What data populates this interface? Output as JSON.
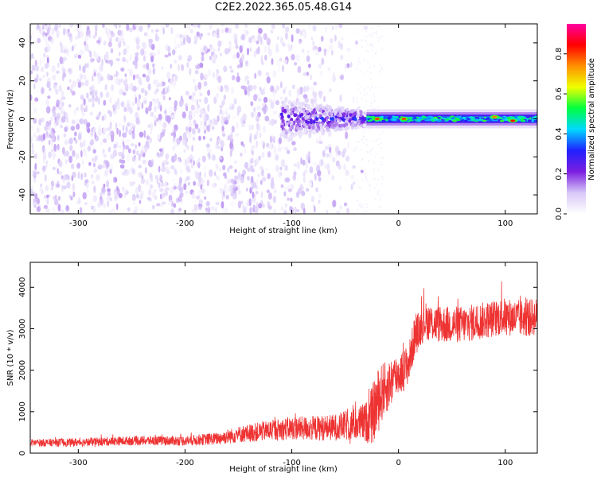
{
  "figure": {
    "title": "C2E2.2022.365.05.48.G14"
  },
  "chart_data": [
    {
      "type": "heatmap",
      "title": "C2E2.2022.365.05.48.G14",
      "xlabel": "Height of straight line (km)",
      "ylabel": "Frequency (Hz)",
      "xlim": [
        -345,
        130
      ],
      "ylim": [
        -50,
        50
      ],
      "xticks": [
        -300,
        -200,
        -100,
        0,
        100
      ],
      "yticks": [
        -40,
        -20,
        0,
        20,
        40
      ],
      "colorbar": {
        "label": "Normalized spectral amplitude",
        "range": [
          0,
          0.95
        ],
        "ticks": [
          0.0,
          0.2,
          0.4,
          0.6,
          0.8
        ],
        "colormap": [
          "#ffffff",
          "#d8c8f8",
          "#7b1fe0",
          "#2020ff",
          "#00d8ff",
          "#00ff40",
          "#f0ff00",
          "#ff9000",
          "#ff0000",
          "#ff00a0"
        ]
      },
      "features": [
        {
          "x_range": [
            -345,
            -30
          ],
          "frequency_range": [
            -50,
            50
          ],
          "description_value": "broadband scatter",
          "typical_amplitude": 0.08
        },
        {
          "x_range": [
            -110,
            -30
          ],
          "frequency_center": 0,
          "typical_amplitude": 0.25
        },
        {
          "x_range": [
            -30,
            130
          ],
          "frequency_center": 0,
          "frequency_width": 4,
          "typical_amplitude": 0.35
        },
        {
          "x": -20,
          "frequency": 0,
          "amplitude": 0.8
        },
        {
          "x": 5,
          "frequency": 0,
          "amplitude": 0.8
        },
        {
          "x": 90,
          "frequency": 1,
          "amplitude": 0.75
        },
        {
          "x": 107,
          "frequency": -1,
          "amplitude": 0.85
        }
      ]
    },
    {
      "type": "line",
      "xlabel": "Height of straight line (km)",
      "ylabel": "SNR (10 * v/v)",
      "xlim": [
        -345,
        130
      ],
      "ylim": [
        0,
        4600
      ],
      "xticks": [
        -300,
        -200,
        -100,
        0,
        100
      ],
      "yticks": [
        0,
        1000,
        2000,
        3000,
        4000
      ],
      "color": "#ee3333",
      "series": [
        {
          "x": [
            -345,
            -300,
            -250,
            -200,
            -170,
            -150,
            -120,
            -100,
            -80,
            -60,
            -40,
            -30,
            -25,
            -20,
            -15,
            -10,
            -5,
            0,
            5,
            10,
            15,
            20,
            25,
            30,
            40,
            60,
            80,
            100,
            110,
            120,
            130
          ],
          "values": [
            250,
            260,
            300,
            300,
            350,
            450,
            550,
            600,
            600,
            620,
            700,
            750,
            900,
            1200,
            1500,
            1600,
            1800,
            1900,
            2000,
            2200,
            2800,
            3000,
            3200,
            3150,
            3100,
            3100,
            3200,
            3300,
            3250,
            3250,
            3300
          ],
          "noise_amplitude": [
            90,
            100,
            110,
            120,
            150,
            200,
            250,
            280,
            300,
            320,
            400,
            500,
            700,
            800,
            700,
            600,
            600,
            500,
            500,
            500,
            500,
            450,
            450,
            450,
            450,
            450,
            450,
            450,
            450,
            450,
            450
          ]
        }
      ]
    }
  ]
}
